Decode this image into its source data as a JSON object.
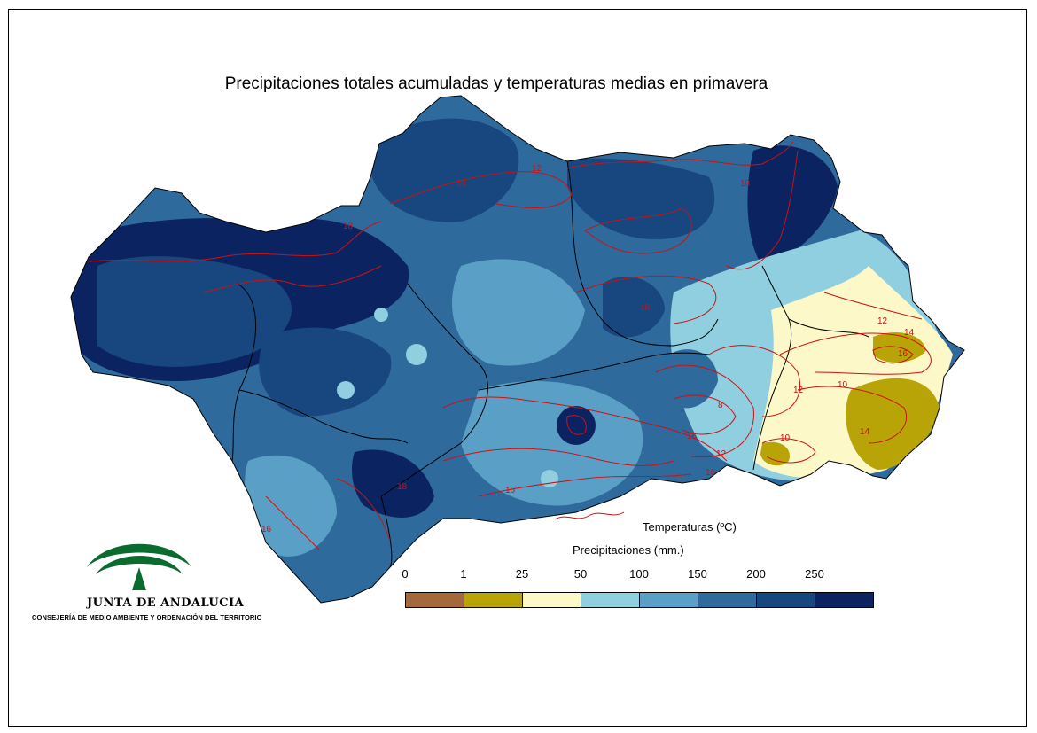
{
  "title": "Precipitaciones totales acumuladas y temperaturas medias en primavera",
  "legend": {
    "temperature_label": "Temperaturas (ºC)",
    "precipitation_label": "Precipitaciones (mm.)",
    "ticks": [
      "0",
      "1",
      "25",
      "50",
      "100",
      "150",
      "200",
      "250"
    ],
    "classes": [
      {
        "range": "0-1",
        "color": "#a3693a"
      },
      {
        "range": "1-25",
        "color": "#b8a406"
      },
      {
        "range": "25-50",
        "color": "#fdf8c8"
      },
      {
        "range": "50-100",
        "color": "#90cfe0"
      },
      {
        "range": "100-150",
        "color": "#5aa0c6"
      },
      {
        "range": "150-200",
        "color": "#2f6a9c"
      },
      {
        "range": "200-250",
        "color": "#18467e"
      },
      {
        "range": ">250",
        "color": "#0b2461"
      }
    ]
  },
  "isotherm_labels": [
    "8",
    "10",
    "10",
    "12",
    "12",
    "12",
    "12",
    "14",
    "14",
    "16",
    "16",
    "16",
    "16",
    "16",
    "16",
    "18",
    "18",
    "18",
    "18"
  ],
  "colors": {
    "isotherm": "#cc1111",
    "logo_green": "#0a6b2e"
  },
  "logo": {
    "name": "JUNTA DE ANDALUCIA",
    "subtitle": "CONSEJERÍA DE MEDIO AMBIENTE Y ORDENACIÓN DEL TERRITORIO"
  }
}
